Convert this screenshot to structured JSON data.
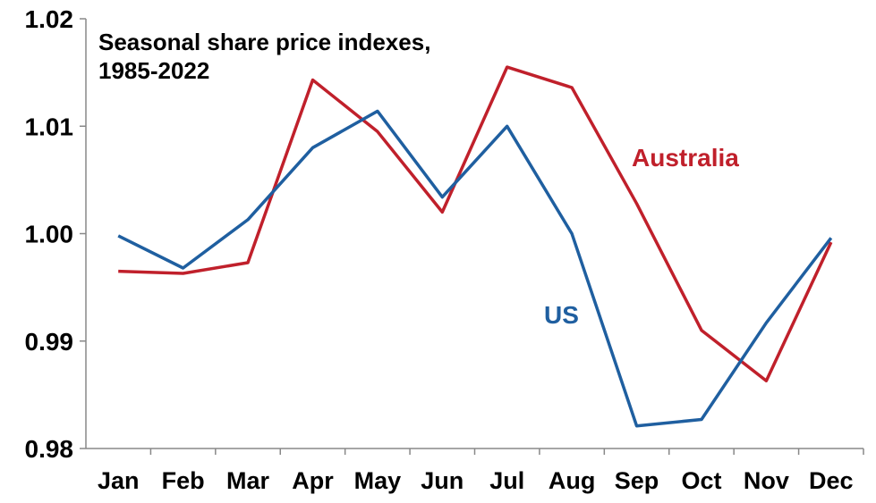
{
  "chart_data": {
    "type": "line",
    "title_lines": [
      "Seasonal share price indexes,",
      "1985-2022"
    ],
    "categories": [
      "Jan",
      "Feb",
      "Mar",
      "Apr",
      "May",
      "Jun",
      "Jul",
      "Aug",
      "Sep",
      "Oct",
      "Nov",
      "Dec"
    ],
    "ylim": [
      0.98,
      1.02
    ],
    "yticks": [
      "0.98",
      "0.99",
      "1.00",
      "1.01",
      "1.02"
    ],
    "yticks_values": [
      0.98,
      0.99,
      1.0,
      1.01,
      1.02
    ],
    "grid": false,
    "series": [
      {
        "name": "Australia",
        "color": "#c0202b",
        "values": [
          0.9965,
          0.9963,
          0.9973,
          1.0143,
          1.0095,
          1.002,
          1.0155,
          1.0136,
          1.0028,
          0.991,
          0.9863,
          0.9992
        ]
      },
      {
        "name": "US",
        "color": "#1f5fa0",
        "values": [
          0.9998,
          0.9968,
          1.0013,
          1.008,
          1.0114,
          1.0034,
          1.01,
          1.0,
          0.9821,
          0.9827,
          0.9917,
          0.9996
        ]
      }
    ]
  }
}
